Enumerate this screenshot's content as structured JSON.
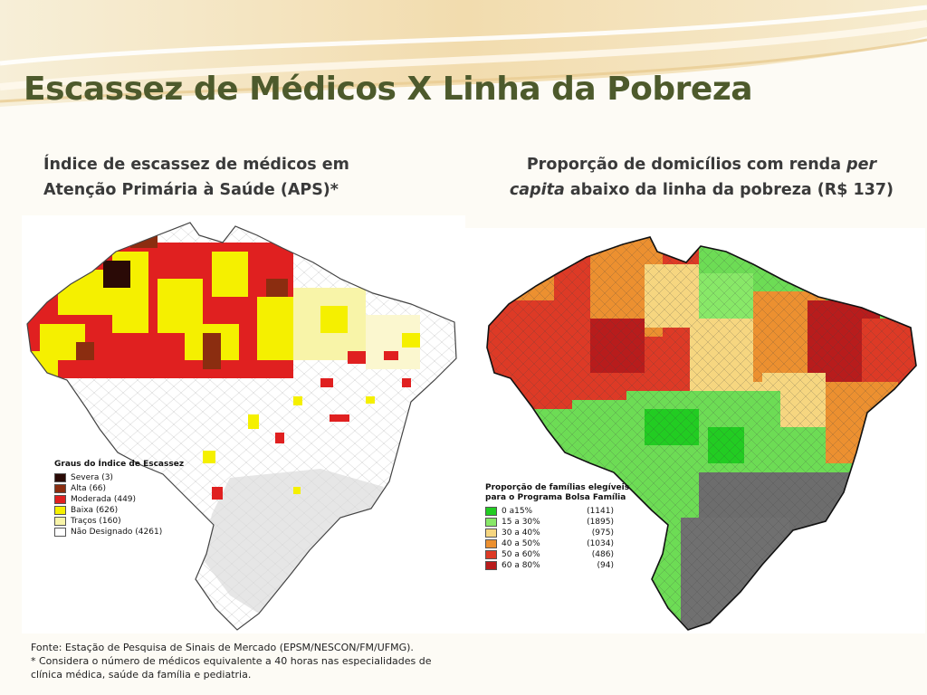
{
  "slide": {
    "title": "Escassez de Médicos X Linha da Pobreza"
  },
  "left_map": {
    "caption_line1": "Índice de escassez de médicos em",
    "caption_line2": "Atenção Primária à Saúde (APS)*",
    "legend": {
      "title": "Graus do Índice de Escassez",
      "items": [
        {
          "label": "Severa (3)",
          "color": "#2a0a06"
        },
        {
          "label": "Alta (66)",
          "color": "#8b2d10"
        },
        {
          "label": "Moderada (449)",
          "color": "#e02020"
        },
        {
          "label": "Baixa (626)",
          "color": "#f5f000"
        },
        {
          "label": "Traços (160)",
          "color": "#f8f4a8"
        },
        {
          "label": "Não Designado (4261)",
          "color": "#ffffff"
        }
      ]
    }
  },
  "right_map": {
    "caption_line1_before": "Proporção de domicílios com renda ",
    "caption_line1_italic": "per",
    "caption_line2_italic": "capita",
    "caption_line2_after": " abaixo  da linha da pobreza (R$ 137)",
    "legend": {
      "title_line1": "Proporção de famílias elegíveis",
      "title_line2": "para o Programa Bolsa Família",
      "items": [
        {
          "range": "0      a15%",
          "count": "(1141)",
          "color": "#22cc22"
        },
        {
          "range": "15 a 30%",
          "count": "(1895)",
          "color": "#88e868"
        },
        {
          "range": "30 a 40%",
          "count": "(975)",
          "color": "#f6d680"
        },
        {
          "range": "40 a 50%",
          "count": "(1034)",
          "color": "#ec9030"
        },
        {
          "range": "50 a 60%",
          "count": "(486)",
          "color": "#dd3a26"
        },
        {
          "range": "60 a 80%",
          "count": "(94)",
          "color": "#b81c1c"
        }
      ]
    }
  },
  "footnote": {
    "line1": "Fonte: Estação de Pesquisa de Sinais de Mercado (EPSM/NESCON/FM/UFMG).",
    "line2": "* Considera  o número de médicos equivalente a 40 horas  nas especialidades de",
    "line3": "clínica médica, saúde da família e pediatria."
  },
  "colors": {
    "title": "#4d5a2c",
    "banner_light": "#f6e7c4",
    "banner_dark": "#e6c88c",
    "divider_gray": "#9a9a9a"
  }
}
